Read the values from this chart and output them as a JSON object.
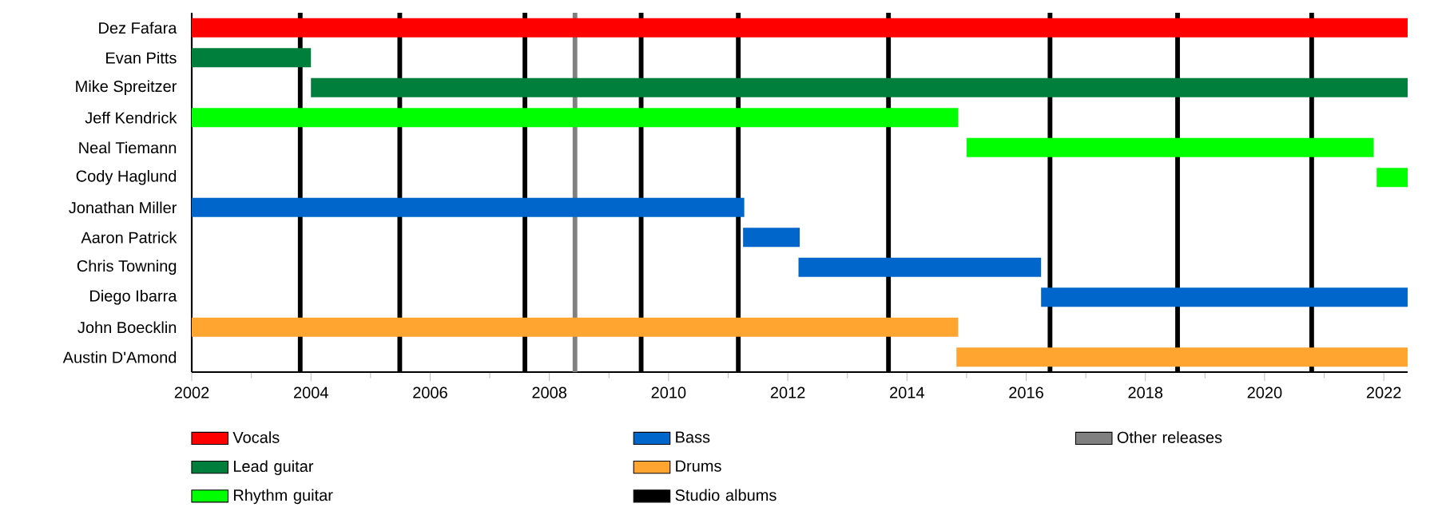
{
  "chart_data": {
    "type": "bar",
    "orientation": "horizontal",
    "categories": [
      "Dez Fafara",
      "Evan Pitts",
      "Mike Spreitzer",
      "Jeff Kendrick",
      "Neal Tiemann",
      "Cody Haglund",
      "Jonathan Miller",
      "Aaron Patrick",
      "Chris Towning",
      "Diego Ibarra",
      "John Boecklin",
      "Austin D'Amond"
    ],
    "series": [
      {
        "name": "Vocals",
        "color": "#ff0000",
        "base": [
          2002,
          null,
          null,
          null,
          null,
          null,
          null,
          null,
          null,
          null,
          null,
          null
        ],
        "values": [
          20.4,
          null,
          null,
          null,
          null,
          null,
          null,
          null,
          null,
          null,
          null,
          null
        ]
      },
      {
        "name": "Lead guitar",
        "color": "#007f3c",
        "base": [
          null,
          2002,
          2004.0,
          null,
          null,
          null,
          null,
          null,
          null,
          null,
          null,
          null
        ],
        "values": [
          null,
          2.0,
          18.4,
          null,
          null,
          null,
          null,
          null,
          null,
          null,
          null,
          null
        ]
      },
      {
        "name": "Rhythm guitar",
        "color": "#00ff00",
        "base": [
          null,
          null,
          null,
          2002,
          2015.0,
          2021.88,
          null,
          null,
          null,
          null,
          null,
          null
        ],
        "values": [
          null,
          null,
          null,
          12.86,
          6.83,
          0.52,
          null,
          null,
          null,
          null,
          null,
          null
        ]
      },
      {
        "name": "Bass",
        "color": "#0066cc",
        "base": [
          null,
          null,
          null,
          null,
          null,
          null,
          2002,
          2011.25,
          2012.18,
          2016.25,
          null,
          null
        ],
        "values": [
          null,
          null,
          null,
          null,
          null,
          null,
          9.27,
          0.95,
          4.07,
          6.15,
          null,
          null
        ]
      },
      {
        "name": "Drums",
        "color": "#ffa530",
        "base": [
          null,
          null,
          null,
          null,
          null,
          null,
          null,
          null,
          null,
          null,
          2002,
          2014.83
        ],
        "values": [
          null,
          null,
          null,
          null,
          null,
          null,
          null,
          null,
          null,
          null,
          12.86,
          7.57
        ]
      }
    ],
    "ref_lines": [
      {
        "axis": "x",
        "value": 2003.82,
        "label": "Studio albums",
        "color": "#000000"
      },
      {
        "axis": "x",
        "value": 2005.49,
        "color": "#000000"
      },
      {
        "axis": "x",
        "value": 2007.59,
        "color": "#000000"
      },
      {
        "axis": "x",
        "value": 2009.54,
        "color": "#000000"
      },
      {
        "axis": "x",
        "value": 2011.17,
        "color": "#000000"
      },
      {
        "axis": "x",
        "value": 2013.69,
        "color": "#000000"
      },
      {
        "axis": "x",
        "value": 2016.4,
        "color": "#000000"
      },
      {
        "axis": "x",
        "value": 2018.54,
        "color": "#000000"
      },
      {
        "axis": "x",
        "value": 2020.79,
        "color": "#000000"
      },
      {
        "axis": "x",
        "value": 2008.43,
        "label": "Other releases",
        "color": "#808080"
      }
    ],
    "xlim": [
      2002,
      2022.4
    ],
    "xticks": [
      2002,
      2004,
      2006,
      2008,
      2010,
      2012,
      2014,
      2016,
      2018,
      2020,
      2022
    ],
    "legend": "bottom"
  }
}
